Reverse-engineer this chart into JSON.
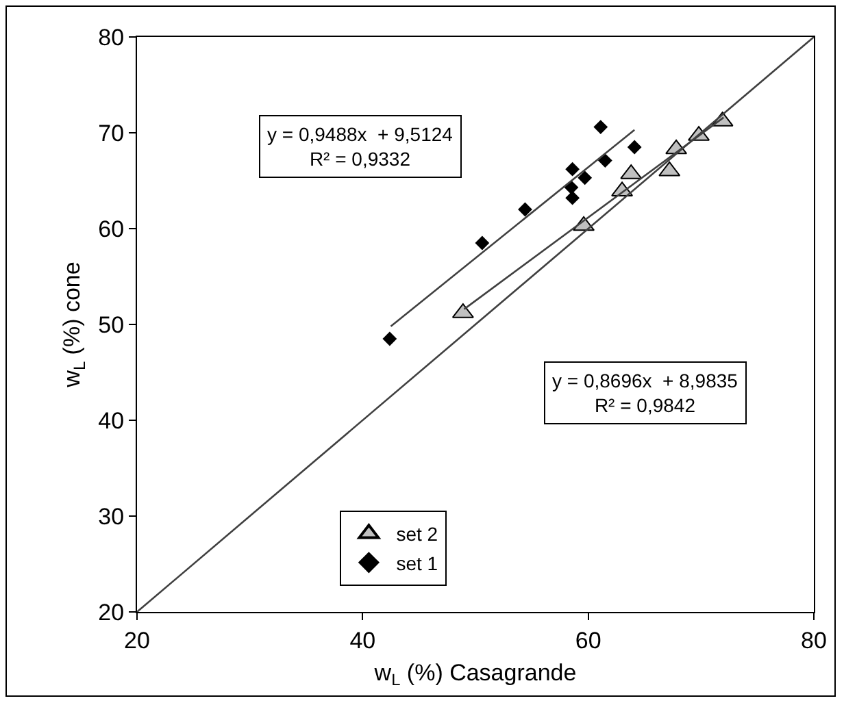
{
  "chart_data": {
    "type": "scatter",
    "xlabel": "w$_{L}$ (%) Casagrande",
    "ylabel": "w$_{L}$ (%) cone",
    "xlim": [
      20,
      80
    ],
    "ylim": [
      20,
      80
    ],
    "xticks": [
      20,
      40,
      60,
      80
    ],
    "yticks": [
      20,
      30,
      40,
      50,
      60,
      70,
      80
    ],
    "grid": false,
    "legend": "bottom left",
    "annotations": [
      "y = 0,9488x  + 9,5124\nR² = 0,9332",
      "y = 0,8696x  + 8,9835\nR² = 0,9842"
    ],
    "series": [
      {
        "name": "set 2",
        "marker": "triangle",
        "color": "#c0c0c0",
        "x": [
          48.9,
          59.6,
          63.0,
          63.8,
          67.2,
          67.8,
          69.8,
          71.9
        ],
        "values": [
          51.2,
          60.3,
          63.9,
          65.7,
          66.0,
          68.3,
          69.7,
          71.2
        ]
      },
      {
        "name": "set 1",
        "marker": "diamond",
        "color": "#000000",
        "x": [
          42.4,
          50.6,
          54.4,
          58.6,
          58.5,
          58.6,
          59.7,
          61.1,
          61.5,
          64.1
        ],
        "values": [
          48.5,
          58.5,
          62.0,
          66.2,
          64.3,
          63.2,
          65.3,
          70.6,
          67.1,
          68.5
        ]
      },
      {
        "type": "line",
        "marker": "none",
        "color": "#404040",
        "x": [
          42.5,
          64.1
        ],
        "values": [
          49.8,
          70.3
        ]
      },
      {
        "type": "line",
        "marker": "none",
        "color": "#404040",
        "x": [
          49.0,
          72.0
        ],
        "values": [
          51.6,
          71.6
        ]
      },
      {
        "type": "line",
        "marker": "none",
        "color": "#404040",
        "x": [
          20,
          80
        ],
        "values": [
          20,
          80
        ]
      }
    ]
  }
}
